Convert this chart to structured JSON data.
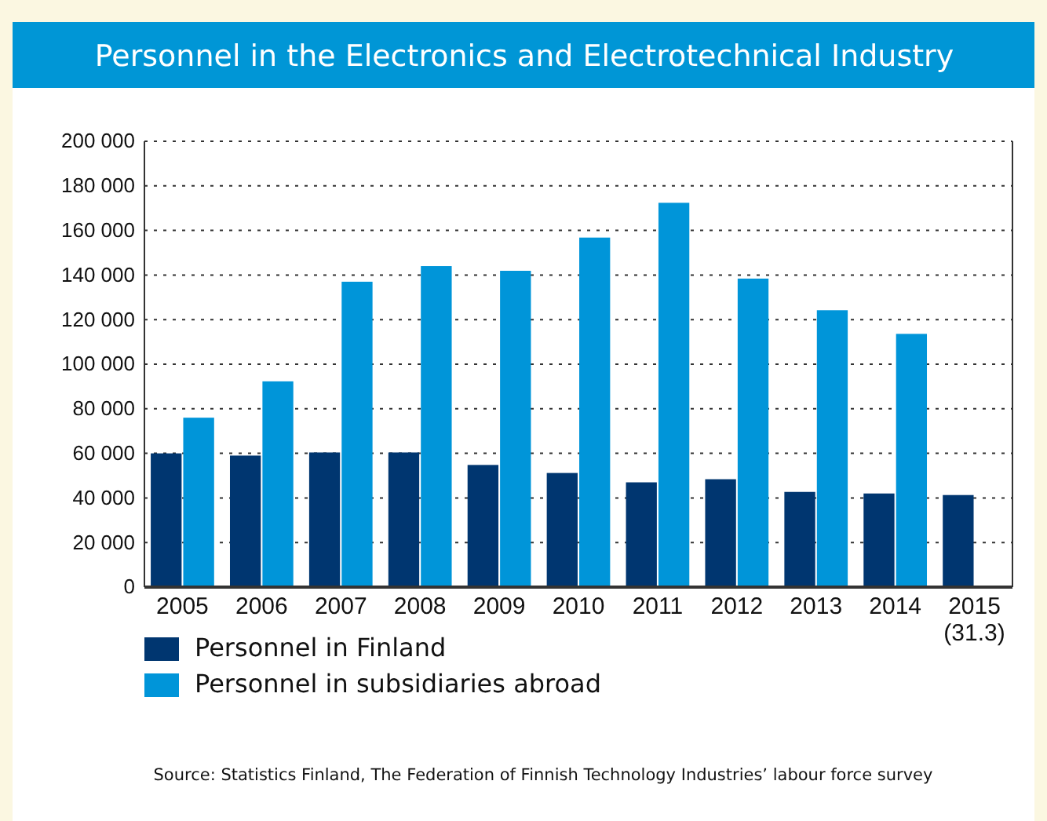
{
  "chart_data": {
    "type": "bar",
    "title": "Personnel in the Electronics and Electrotechnical Industry",
    "categories": [
      "2005",
      "2006",
      "2007",
      "2008",
      "2009",
      "2010",
      "2011",
      "2012",
      "2013",
      "2014",
      "2015\n(31.3)"
    ],
    "series": [
      {
        "name": "Personnel in Finland",
        "color": "#003670",
        "values": [
          60000,
          59000,
          60400,
          60400,
          54800,
          51200,
          47000,
          48400,
          42700,
          42000,
          41300
        ]
      },
      {
        "name": "Personnel in subsidiaries abroad",
        "color": "#0095d9",
        "values": [
          76000,
          92300,
          137000,
          144000,
          141900,
          156800,
          172400,
          138400,
          124200,
          113600,
          null
        ]
      }
    ],
    "ylim": [
      0,
      200000
    ],
    "yticks": [
      {
        "value": 0,
        "label": "0"
      },
      {
        "value": 20000,
        "label": "20 000"
      },
      {
        "value": 40000,
        "label": "40 000"
      },
      {
        "value": 60000,
        "label": "60 000"
      },
      {
        "value": 80000,
        "label": "80 000"
      },
      {
        "value": 100000,
        "label": "100 000"
      },
      {
        "value": 120000,
        "label": "120 000"
      },
      {
        "value": 140000,
        "label": "140 000"
      },
      {
        "value": 160000,
        "label": "160 000"
      },
      {
        "value": 180000,
        "label": "180 000"
      },
      {
        "value": 200000,
        "label": "200 000"
      }
    ],
    "grid": "y",
    "legend": "bottom",
    "annotations": [
      "Source: Statistics Finland, The Federation of Finnish Technology Industries’ labour force survey"
    ]
  }
}
